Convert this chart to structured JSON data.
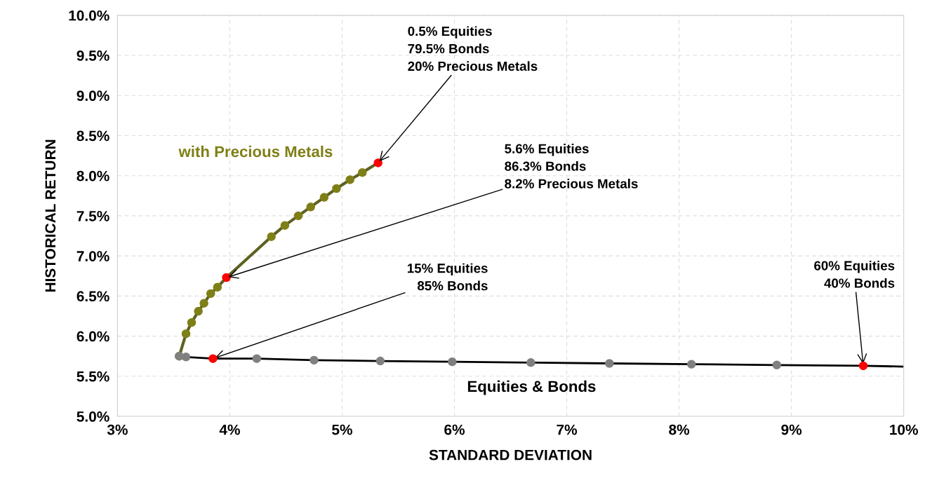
{
  "chart_data": {
    "type": "line",
    "xlabel": "STANDARD DEVIATION",
    "ylabel": "HISTORICAL RETURN",
    "xlim": [
      3,
      10
    ],
    "ylim": [
      5,
      10
    ],
    "xticks": [
      {
        "value": 3,
        "label": "3%"
      },
      {
        "value": 4,
        "label": "4%"
      },
      {
        "value": 5,
        "label": "5%"
      },
      {
        "value": 6,
        "label": "6%"
      },
      {
        "value": 7,
        "label": "7%"
      },
      {
        "value": 8,
        "label": "8%"
      },
      {
        "value": 9,
        "label": "9%"
      },
      {
        "value": 10,
        "label": "10%"
      }
    ],
    "yticks": [
      {
        "value": 5,
        "label": "5.0%"
      },
      {
        "value": 5.5,
        "label": "5.5%"
      },
      {
        "value": 6,
        "label": "6.0%"
      },
      {
        "value": 6.5,
        "label": "6.5%"
      },
      {
        "value": 7,
        "label": "7.0%"
      },
      {
        "value": 7.5,
        "label": "7.5%"
      },
      {
        "value": 8,
        "label": "8.0%"
      },
      {
        "value": 8.5,
        "label": "8.5%"
      },
      {
        "value": 9,
        "label": "9.0%"
      },
      {
        "value": 9.5,
        "label": "9.5%"
      },
      {
        "value": 10,
        "label": "10.0%"
      }
    ],
    "grid": true,
    "legend": false,
    "marker": "circle",
    "line_style": "solid",
    "series": [
      {
        "name": "Equities & Bonds",
        "color": "#000000",
        "x": [
          3.55,
          3.61,
          3.85,
          4.24,
          4.75,
          5.34,
          5.98,
          6.68,
          7.38,
          8.11,
          8.87,
          9.64,
          10.0
        ],
        "values": [
          5.75,
          5.74,
          5.72,
          5.72,
          5.7,
          5.69,
          5.68,
          5.67,
          5.66,
          5.65,
          5.64,
          5.63,
          5.62
        ],
        "colors": [
          "#808080",
          "#808080",
          "#ff0000",
          "#808080",
          "#808080",
          "#808080",
          "#808080",
          "#808080",
          "#808080",
          "#808080",
          "#808080",
          "#ff0000",
          null
        ]
      },
      {
        "name": "with Precious Metals",
        "color": "#5e6121",
        "x": [
          3.55,
          3.61,
          3.66,
          3.72,
          3.77,
          3.83,
          3.89,
          3.97,
          4.37,
          4.49,
          4.61,
          4.72,
          4.84,
          4.95,
          5.07,
          5.18,
          5.32
        ],
        "values": [
          5.75,
          6.03,
          6.17,
          6.31,
          6.41,
          6.53,
          6.61,
          6.73,
          7.24,
          7.38,
          7.5,
          7.61,
          7.73,
          7.84,
          7.95,
          8.04,
          8.16
        ],
        "colors": [
          "#7f7f17",
          "#7f7f17",
          "#7f7f17",
          "#7f7f17",
          "#7f7f17",
          "#7f7f17",
          "#7f7f17",
          "#ff0000",
          "#7f7f17",
          "#7f7f17",
          "#7f7f17",
          "#7f7f17",
          "#7f7f17",
          "#7f7f17",
          "#7f7f17",
          "#7f7f17",
          "#ff0000"
        ]
      }
    ],
    "annotations": [
      {
        "text": "0.5% Equities\n79.5% Bonds\n20% Precious Metals",
        "x": 5.32,
        "y": 8.16
      },
      {
        "text": "5.6% Equities\n86.3% Bonds\n8.2% Precious Metals",
        "x": 3.97,
        "y": 6.73
      },
      {
        "text": "15% Equities\n85% Bonds",
        "x": 3.85,
        "y": 5.72
      },
      {
        "text": "60% Equities\n40% Bonds",
        "x": 9.64,
        "y": 5.63
      }
    ]
  }
}
